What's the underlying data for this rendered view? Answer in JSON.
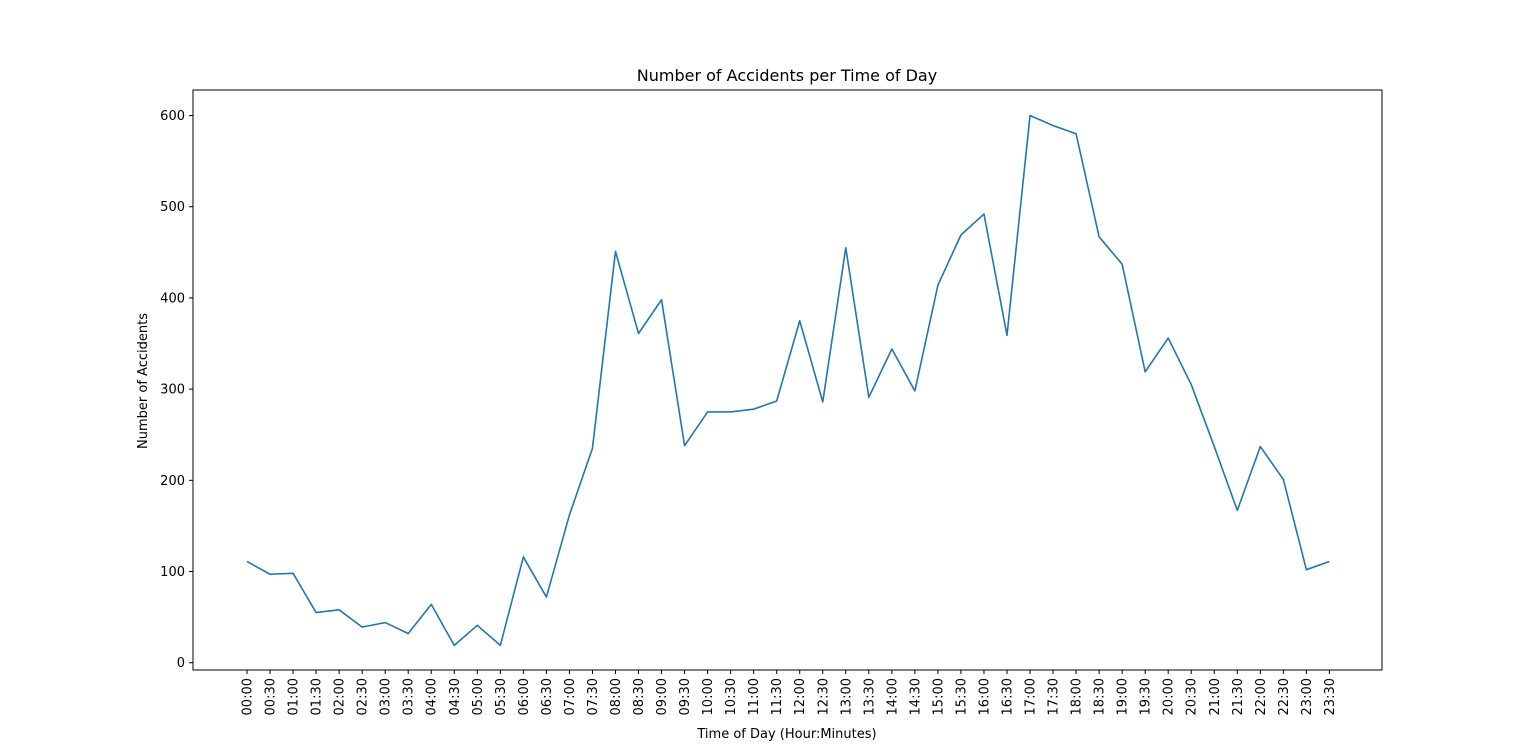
{
  "chart_data": {
    "type": "line",
    "title": "Number of Accidents per Time of Day",
    "xlabel": "Time of Day (Hour:Minutes)",
    "ylabel": "Number of Accidents",
    "ylim": [
      -8,
      628
    ],
    "yticks": [
      0,
      100,
      200,
      300,
      400,
      500,
      600
    ],
    "grid": false,
    "legend": "none",
    "x": [
      "00:00",
      "00:30",
      "01:00",
      "01:30",
      "02:00",
      "02:30",
      "03:00",
      "03:30",
      "04:00",
      "04:30",
      "05:00",
      "05:30",
      "06:00",
      "06:30",
      "07:00",
      "07:30",
      "08:00",
      "08:30",
      "09:00",
      "09:30",
      "10:00",
      "10:30",
      "11:00",
      "11:30",
      "12:00",
      "12:30",
      "13:00",
      "13:30",
      "14:00",
      "14:30",
      "15:00",
      "15:30",
      "16:00",
      "16:30",
      "17:00",
      "17:30",
      "18:00",
      "18:30",
      "19:00",
      "19:30",
      "20:00",
      "20:30",
      "21:00",
      "21:30",
      "22:00",
      "22:30",
      "23:00",
      "23:30"
    ],
    "series": [
      {
        "color": "#1f77b4",
        "values": [
          111,
          97,
          98,
          55,
          58,
          39,
          44,
          32,
          64,
          19,
          41,
          19,
          116,
          72,
          162,
          235,
          451,
          361,
          398,
          238,
          275,
          275,
          278,
          287,
          375,
          286,
          455,
          291,
          344,
          298,
          414,
          469,
          492,
          359,
          600,
          589,
          580,
          467,
          437,
          319,
          356,
          305,
          237,
          167,
          237,
          201,
          102,
          111
        ]
      }
    ]
  }
}
